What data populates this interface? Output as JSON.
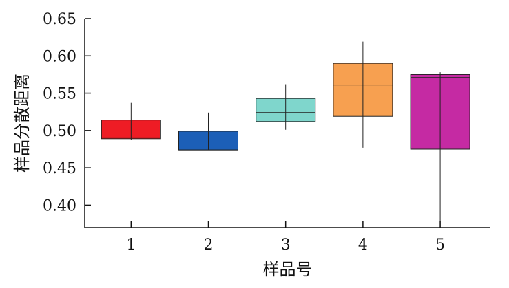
{
  "chart_data": {
    "type": "box",
    "xlabel": "样品号",
    "ylabel": "样品分散距离",
    "ylim": [
      0.37,
      0.65
    ],
    "yticks": [
      0.4,
      0.45,
      0.5,
      0.55,
      0.6,
      0.65
    ],
    "ytick_labels": [
      "0.40",
      "0.45",
      "0.50",
      "0.55",
      "0.60",
      "0.65"
    ],
    "categories": [
      "1",
      "2",
      "3",
      "4",
      "5"
    ],
    "boxes": [
      {
        "category": "1",
        "whisker_low": 0.487,
        "q1": 0.489,
        "median": 0.491,
        "q3": 0.514,
        "whisker_high": 0.537,
        "color": "#EE1C25"
      },
      {
        "category": "2",
        "whisker_low": 0.474,
        "q1": 0.474,
        "median": 0.474,
        "q3": 0.499,
        "whisker_high": 0.524,
        "color": "#1C5FB7"
      },
      {
        "category": "3",
        "whisker_low": 0.501,
        "q1": 0.512,
        "median": 0.524,
        "q3": 0.543,
        "whisker_high": 0.562,
        "color": "#7FD6CC"
      },
      {
        "category": "4",
        "whisker_low": 0.477,
        "q1": 0.519,
        "median": 0.561,
        "q3": 0.59,
        "whisker_high": 0.619,
        "color": "#F7A050"
      },
      {
        "category": "5",
        "whisker_low": 0.37,
        "q1": 0.475,
        "median": 0.571,
        "q3": 0.575,
        "whisker_high": 0.578,
        "color": "#C52AA3"
      }
    ],
    "grid": false,
    "legend": "none"
  }
}
